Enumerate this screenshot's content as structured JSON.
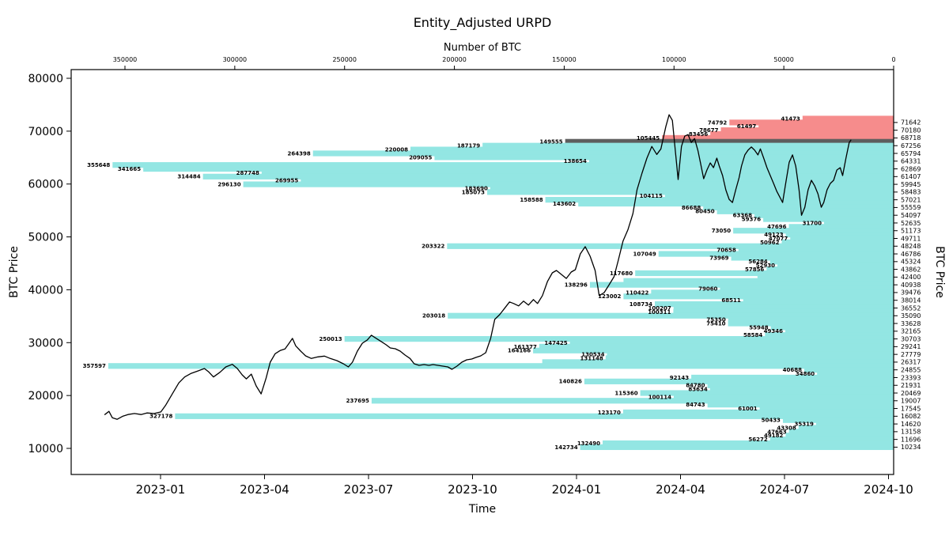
{
  "title": "Entity_Adjusted URPD",
  "axes": {
    "top": {
      "label": "Number of BTC",
      "ticks": [
        "350000",
        "300000",
        "250000",
        "200000",
        "150000",
        "100000",
        "50000",
        "0"
      ]
    },
    "bottom": {
      "label": "Time",
      "ticks": [
        "2023-01",
        "2023-04",
        "2023-07",
        "2023-10",
        "2024-01",
        "2024-04",
        "2024-07",
        "2024-10"
      ]
    },
    "left": {
      "label": "BTC Price",
      "ticks": [
        "10000",
        "20000",
        "30000",
        "40000",
        "50000",
        "60000",
        "70000",
        "80000"
      ]
    },
    "right": {
      "label": "BTC Price"
    }
  },
  "colors": {
    "profit": "#93e6e3",
    "loss": "#f68c8c",
    "current": "#5e5e5e",
    "line": "#000000"
  },
  "chart_data": {
    "type": "bar",
    "orientation": "horizontal",
    "title": "Entity_Adjusted URPD",
    "value_axis": {
      "label": "Number of BTC",
      "min": 0,
      "max": 350000
    },
    "category_axis": {
      "label": "BTC Price",
      "min": 10000,
      "max": 80000
    },
    "right_axis_price_labels": [
      71642,
      70180,
      68718,
      67256,
      65794,
      64331,
      62869,
      61407,
      59945,
      58483,
      57021,
      55559,
      54097,
      52635,
      51173,
      49711,
      48248,
      46786,
      45324,
      43862,
      42400,
      40938,
      39476,
      38014,
      36552,
      35090,
      33628,
      32165,
      30703,
      29241,
      27779,
      26317,
      24855,
      23393,
      21931,
      20469,
      19007,
      17545,
      16082,
      14620,
      13158,
      11696,
      10234
    ],
    "bars": [
      {
        "price": 72373,
        "btc": 41473,
        "color": "loss"
      },
      {
        "price": 71642,
        "btc": 74792,
        "color": "loss"
      },
      {
        "price": 70911,
        "btc": 61497,
        "color": "loss"
      },
      {
        "price": 70180,
        "btc": 78677,
        "color": "loss"
      },
      {
        "price": 69449,
        "btc": 83456,
        "color": "loss"
      },
      {
        "price": 68718,
        "btc": 105445,
        "color": "loss"
      },
      {
        "price": 67987,
        "btc": 149555,
        "color": "current"
      },
      {
        "price": 67256,
        "btc": 187179,
        "color": "profit"
      },
      {
        "price": 66525,
        "btc": 220008,
        "color": "profit"
      },
      {
        "price": 65794,
        "btc": 264398,
        "color": "profit"
      },
      {
        "price": 65062,
        "btc": 209055,
        "color": "profit"
      },
      {
        "price": 64331,
        "btc": 138654,
        "color": "profit"
      },
      {
        "price": 63600,
        "btc": 355648,
        "color": "profit"
      },
      {
        "price": 62869,
        "btc": 341665,
        "color": "profit"
      },
      {
        "price": 62138,
        "btc": 287748,
        "color": "profit"
      },
      {
        "price": 61407,
        "btc": 314484,
        "color": "profit"
      },
      {
        "price": 60676,
        "btc": 269955,
        "color": "profit"
      },
      {
        "price": 59945,
        "btc": 296130,
        "color": "profit"
      },
      {
        "price": 59214,
        "btc": 183690,
        "color": "profit"
      },
      {
        "price": 58483,
        "btc": 185073,
        "color": "profit"
      },
      {
        "price": 57752,
        "btc": 104115,
        "color": "profit"
      },
      {
        "price": 57021,
        "btc": 158588,
        "color": "profit"
      },
      {
        "price": 56290,
        "btc": 143602,
        "color": "profit"
      },
      {
        "price": 55559,
        "btc": 86688,
        "color": "profit"
      },
      {
        "price": 54828,
        "btc": 80450,
        "color": "profit"
      },
      {
        "price": 54097,
        "btc": 63368,
        "color": "profit"
      },
      {
        "price": 53366,
        "btc": 59376,
        "color": "profit"
      },
      {
        "price": 52635,
        "btc": 31700,
        "color": "profit"
      },
      {
        "price": 51904,
        "btc": 47696,
        "color": "profit"
      },
      {
        "price": 51173,
        "btc": 73050,
        "color": "profit"
      },
      {
        "price": 50442,
        "btc": 49123,
        "color": "profit"
      },
      {
        "price": 49711,
        "btc": 47077,
        "color": "profit"
      },
      {
        "price": 48979,
        "btc": 50962,
        "color": "profit"
      },
      {
        "price": 48248,
        "btc": 203322,
        "color": "profit"
      },
      {
        "price": 47517,
        "btc": 70658,
        "color": "profit"
      },
      {
        "price": 46786,
        "btc": 107049,
        "color": "profit"
      },
      {
        "price": 46055,
        "btc": 73969,
        "color": "profit"
      },
      {
        "price": 45324,
        "btc": 56284,
        "color": "profit"
      },
      {
        "price": 44593,
        "btc": 52930,
        "color": "profit"
      },
      {
        "price": 43862,
        "btc": 57856,
        "color": "profit"
      },
      {
        "price": 43131,
        "btc": 117680,
        "color": "profit"
      },
      {
        "price": 42400,
        "btc": 62000,
        "color": "profit",
        "label": false
      },
      {
        "price": 41669,
        "btc": 123000,
        "color": "profit",
        "label": false
      },
      {
        "price": 40938,
        "btc": 138296,
        "color": "profit"
      },
      {
        "price": 40207,
        "btc": 79060,
        "color": "profit"
      },
      {
        "price": 39476,
        "btc": 110422,
        "color": "profit"
      },
      {
        "price": 38745,
        "btc": 123002,
        "color": "profit"
      },
      {
        "price": 38014,
        "btc": 68511,
        "color": "profit"
      },
      {
        "price": 37283,
        "btc": 108734,
        "color": "profit"
      },
      {
        "price": 36552,
        "btc": 100207,
        "color": "profit"
      },
      {
        "price": 35821,
        "btc": 100311,
        "color": "profit"
      },
      {
        "price": 35090,
        "btc": 203018,
        "color": "profit"
      },
      {
        "price": 34359,
        "btc": 75350,
        "color": "profit"
      },
      {
        "price": 33628,
        "btc": 75410,
        "color": "profit"
      },
      {
        "price": 32896,
        "btc": 55948,
        "color": "profit"
      },
      {
        "price": 32165,
        "btc": 49346,
        "color": "profit"
      },
      {
        "price": 31434,
        "btc": 58584,
        "color": "profit"
      },
      {
        "price": 30703,
        "btc": 250013,
        "color": "profit"
      },
      {
        "price": 29972,
        "btc": 147425,
        "color": "profit"
      },
      {
        "price": 29241,
        "btc": 161377,
        "color": "profit"
      },
      {
        "price": 28510,
        "btc": 164166,
        "color": "profit"
      },
      {
        "price": 27779,
        "btc": 130534,
        "color": "profit"
      },
      {
        "price": 27048,
        "btc": 131148,
        "color": "profit"
      },
      {
        "price": 26317,
        "btc": 160000,
        "color": "profit",
        "label": false
      },
      {
        "price": 25586,
        "btc": 357597,
        "color": "profit"
      },
      {
        "price": 24855,
        "btc": 40688,
        "color": "profit"
      },
      {
        "price": 24124,
        "btc": 34860,
        "color": "profit"
      },
      {
        "price": 23393,
        "btc": 92143,
        "color": "profit"
      },
      {
        "price": 22662,
        "btc": 140826,
        "color": "profit"
      },
      {
        "price": 21931,
        "btc": 84780,
        "color": "profit"
      },
      {
        "price": 21200,
        "btc": 83634,
        "color": "profit"
      },
      {
        "price": 20469,
        "btc": 115360,
        "color": "profit"
      },
      {
        "price": 19738,
        "btc": 100114,
        "color": "profit"
      },
      {
        "price": 19007,
        "btc": 237695,
        "color": "profit"
      },
      {
        "price": 18276,
        "btc": 84743,
        "color": "profit"
      },
      {
        "price": 17545,
        "btc": 61001,
        "color": "profit"
      },
      {
        "price": 16813,
        "btc": 123170,
        "color": "profit"
      },
      {
        "price": 16082,
        "btc": 327178,
        "color": "profit"
      },
      {
        "price": 15351,
        "btc": 50433,
        "color": "profit"
      },
      {
        "price": 14620,
        "btc": 35319,
        "color": "profit"
      },
      {
        "price": 13889,
        "btc": 43308,
        "color": "profit"
      },
      {
        "price": 13158,
        "btc": 47663,
        "color": "profit"
      },
      {
        "price": 12427,
        "btc": 49182,
        "color": "profit"
      },
      {
        "price": 11696,
        "btc": 56272,
        "color": "profit"
      },
      {
        "price": 10965,
        "btc": 132490,
        "color": "profit"
      },
      {
        "price": 10234,
        "btc": 142734,
        "color": "profit"
      }
    ],
    "price_line": {
      "x_axis": "Time",
      "x_range": [
        "2022-11",
        "2024-11"
      ],
      "points": [
        [
          0.041,
          16400
        ],
        [
          0.046,
          17000
        ],
        [
          0.05,
          15800
        ],
        [
          0.056,
          15500
        ],
        [
          0.063,
          16100
        ],
        [
          0.069,
          16400
        ],
        [
          0.077,
          16600
        ],
        [
          0.085,
          16400
        ],
        [
          0.092,
          16700
        ],
        [
          0.101,
          16600
        ],
        [
          0.109,
          16900
        ],
        [
          0.115,
          18200
        ],
        [
          0.123,
          20300
        ],
        [
          0.131,
          22400
        ],
        [
          0.138,
          23500
        ],
        [
          0.146,
          24200
        ],
        [
          0.154,
          24650
        ],
        [
          0.162,
          25100
        ],
        [
          0.167,
          24500
        ],
        [
          0.173,
          23500
        ],
        [
          0.181,
          24400
        ],
        [
          0.188,
          25400
        ],
        [
          0.196,
          25900
        ],
        [
          0.202,
          25100
        ],
        [
          0.208,
          23900
        ],
        [
          0.213,
          23150
        ],
        [
          0.219,
          24050
        ],
        [
          0.225,
          21800
        ],
        [
          0.231,
          20300
        ],
        [
          0.237,
          23300
        ],
        [
          0.242,
          26300
        ],
        [
          0.248,
          27900
        ],
        [
          0.254,
          28500
        ],
        [
          0.26,
          28800
        ],
        [
          0.265,
          29900
        ],
        [
          0.269,
          30800
        ],
        [
          0.273,
          29400
        ],
        [
          0.279,
          28400
        ],
        [
          0.285,
          27500
        ],
        [
          0.292,
          27000
        ],
        [
          0.3,
          27300
        ],
        [
          0.308,
          27450
        ],
        [
          0.315,
          27000
        ],
        [
          0.323,
          26600
        ],
        [
          0.331,
          26000
        ],
        [
          0.337,
          25400
        ],
        [
          0.342,
          26300
        ],
        [
          0.348,
          28400
        ],
        [
          0.354,
          29900
        ],
        [
          0.36,
          30500
        ],
        [
          0.365,
          31400
        ],
        [
          0.371,
          30800
        ],
        [
          0.377,
          30200
        ],
        [
          0.383,
          29600
        ],
        [
          0.388,
          29000
        ],
        [
          0.394,
          28850
        ],
        [
          0.4,
          28400
        ],
        [
          0.406,
          27650
        ],
        [
          0.412,
          27000
        ],
        [
          0.417,
          26000
        ],
        [
          0.423,
          25700
        ],
        [
          0.429,
          25850
        ],
        [
          0.435,
          25700
        ],
        [
          0.44,
          25850
        ],
        [
          0.446,
          25700
        ],
        [
          0.452,
          25550
        ],
        [
          0.458,
          25400
        ],
        [
          0.463,
          24950
        ],
        [
          0.469,
          25550
        ],
        [
          0.475,
          26300
        ],
        [
          0.481,
          26750
        ],
        [
          0.487,
          26900
        ],
        [
          0.492,
          27200
        ],
        [
          0.498,
          27500
        ],
        [
          0.504,
          28100
        ],
        [
          0.51,
          30800
        ],
        [
          0.515,
          34400
        ],
        [
          0.521,
          35300
        ],
        [
          0.527,
          36500
        ],
        [
          0.533,
          37700
        ],
        [
          0.538,
          37400
        ],
        [
          0.544,
          36950
        ],
        [
          0.55,
          37850
        ],
        [
          0.556,
          37100
        ],
        [
          0.562,
          38150
        ],
        [
          0.567,
          37400
        ],
        [
          0.573,
          38900
        ],
        [
          0.579,
          41550
        ],
        [
          0.585,
          43200
        ],
        [
          0.59,
          43650
        ],
        [
          0.596,
          42900
        ],
        [
          0.602,
          42150
        ],
        [
          0.608,
          43350
        ],
        [
          0.613,
          43800
        ],
        [
          0.619,
          46800
        ],
        [
          0.625,
          48150
        ],
        [
          0.631,
          46350
        ],
        [
          0.637,
          43650
        ],
        [
          0.642,
          38900
        ],
        [
          0.648,
          39450
        ],
        [
          0.654,
          40950
        ],
        [
          0.66,
          42450
        ],
        [
          0.665,
          45450
        ],
        [
          0.671,
          49200
        ],
        [
          0.677,
          51400
        ],
        [
          0.683,
          54400
        ],
        [
          0.688,
          58900
        ],
        [
          0.694,
          62050
        ],
        [
          0.7,
          64900
        ],
        [
          0.706,
          67100
        ],
        [
          0.712,
          65600
        ],
        [
          0.717,
          66650
        ],
        [
          0.723,
          70850
        ],
        [
          0.727,
          73100
        ],
        [
          0.731,
          72050
        ],
        [
          0.735,
          65600
        ],
        [
          0.738,
          60850
        ],
        [
          0.742,
          67100
        ],
        [
          0.746,
          69050
        ],
        [
          0.75,
          69350
        ],
        [
          0.754,
          67850
        ],
        [
          0.758,
          68600
        ],
        [
          0.762,
          66350
        ],
        [
          0.765,
          64100
        ],
        [
          0.769,
          61000
        ],
        [
          0.773,
          62650
        ],
        [
          0.777,
          64000
        ],
        [
          0.781,
          63100
        ],
        [
          0.785,
          64900
        ],
        [
          0.788,
          63400
        ],
        [
          0.792,
          61600
        ],
        [
          0.796,
          58900
        ],
        [
          0.8,
          57100
        ],
        [
          0.804,
          56500
        ],
        [
          0.808,
          58900
        ],
        [
          0.812,
          61150
        ],
        [
          0.815,
          63400
        ],
        [
          0.819,
          65500
        ],
        [
          0.823,
          66400
        ],
        [
          0.827,
          67000
        ],
        [
          0.831,
          66400
        ],
        [
          0.835,
          65500
        ],
        [
          0.838,
          66650
        ],
        [
          0.842,
          64900
        ],
        [
          0.846,
          63100
        ],
        [
          0.85,
          61600
        ],
        [
          0.854,
          60100
        ],
        [
          0.858,
          58600
        ],
        [
          0.862,
          57400
        ],
        [
          0.865,
          56500
        ],
        [
          0.869,
          60400
        ],
        [
          0.873,
          64100
        ],
        [
          0.877,
          65500
        ],
        [
          0.881,
          63400
        ],
        [
          0.885,
          58900
        ],
        [
          0.888,
          54100
        ],
        [
          0.892,
          55600
        ],
        [
          0.896,
          58900
        ],
        [
          0.9,
          60700
        ],
        [
          0.904,
          59650
        ],
        [
          0.908,
          58150
        ],
        [
          0.912,
          55600
        ],
        [
          0.915,
          56500
        ],
        [
          0.919,
          58900
        ],
        [
          0.923,
          60100
        ],
        [
          0.927,
          60700
        ],
        [
          0.931,
          62650
        ],
        [
          0.935,
          63100
        ],
        [
          0.938,
          61600
        ],
        [
          0.942,
          64900
        ],
        [
          0.946,
          67850
        ],
        [
          0.948,
          68300
        ]
      ]
    }
  }
}
